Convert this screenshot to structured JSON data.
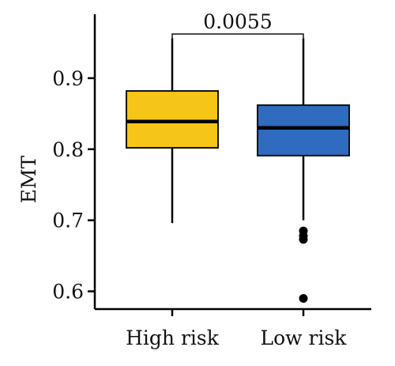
{
  "chart_data": {
    "type": "box",
    "ylabel": "EMT",
    "ylim": [
      0.575,
      0.99
    ],
    "yticks": [
      0.6,
      0.7,
      0.8,
      0.9
    ],
    "ytick_labels": [
      "0.6",
      "0.7",
      "0.8",
      "0.9"
    ],
    "categories": [
      "High risk",
      "Low risk"
    ],
    "boxes": [
      {
        "category": "High risk",
        "color": "#F5C518",
        "whisker_low": 0.696,
        "q1": 0.802,
        "median": 0.839,
        "q3": 0.882,
        "whisker_high": 0.956,
        "outliers": []
      },
      {
        "category": "Low risk",
        "color": "#2F6BBE",
        "whisker_low": 0.7,
        "q1": 0.791,
        "median": 0.83,
        "q3": 0.862,
        "whisker_high": 0.956,
        "outliers": [
          0.685,
          0.678,
          0.673,
          0.59
        ]
      }
    ],
    "comparison": {
      "label": "0.0055",
      "from": "High risk",
      "to": "Low risk"
    },
    "grid": false,
    "legend": "none"
  }
}
